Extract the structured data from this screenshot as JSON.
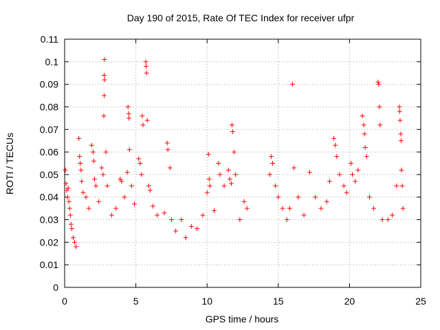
{
  "chart_data": {
    "type": "scatter",
    "title": "Day 190 of 2015, Rate Of TEC Index for receiver ufpr",
    "xlabel": "GPS time / hours",
    "ylabel": "ROTI / TECUs",
    "xlim": [
      0,
      25
    ],
    "ylim": [
      0,
      0.11
    ],
    "xticks": [
      "0",
      "5",
      "10",
      "15",
      "20",
      "25"
    ],
    "yticks": [
      "0",
      "0.01",
      "0.02",
      "0.03",
      "0.04",
      "0.05",
      "0.06",
      "0.07",
      "0.08",
      "0.09",
      "0.1",
      "0.11"
    ],
    "grid": true,
    "marker": "+",
    "color": "#ff0000",
    "series": [
      {
        "values": [
          [
            0.05,
            0.052
          ],
          [
            0.1,
            0.046
          ],
          [
            0.15,
            0.043
          ],
          [
            0.2,
            0.04
          ],
          [
            0.25,
            0.044
          ],
          [
            0.3,
            0.038
          ],
          [
            0.35,
            0.035
          ],
          [
            0.4,
            0.032
          ],
          [
            0.45,
            0.028
          ],
          [
            0.5,
            0.026
          ],
          [
            0.6,
            0.022
          ],
          [
            0.7,
            0.02
          ],
          [
            0.8,
            0.018
          ],
          [
            1.0,
            0.066
          ],
          [
            1.05,
            0.058
          ],
          [
            1.1,
            0.055
          ],
          [
            1.15,
            0.052
          ],
          [
            1.2,
            0.047
          ],
          [
            1.3,
            0.042
          ],
          [
            1.5,
            0.04
          ],
          [
            1.7,
            0.035
          ],
          [
            1.9,
            0.063
          ],
          [
            2.0,
            0.06
          ],
          [
            2.05,
            0.056
          ],
          [
            2.1,
            0.048
          ],
          [
            2.2,
            0.045
          ],
          [
            2.4,
            0.038
          ],
          [
            2.6,
            0.053
          ],
          [
            2.7,
            0.05
          ],
          [
            2.8,
            0.101
          ],
          [
            2.78,
            0.094
          ],
          [
            2.8,
            0.092
          ],
          [
            2.78,
            0.085
          ],
          [
            2.75,
            0.076
          ],
          [
            2.9,
            0.06
          ],
          [
            3.0,
            0.045
          ],
          [
            3.3,
            0.032
          ],
          [
            3.6,
            0.035
          ],
          [
            3.9,
            0.048
          ],
          [
            4.0,
            0.047
          ],
          [
            4.2,
            0.04
          ],
          [
            4.45,
            0.08
          ],
          [
            4.5,
            0.077
          ],
          [
            4.52,
            0.075
          ],
          [
            4.55,
            0.061
          ],
          [
            4.4,
            0.051
          ],
          [
            4.7,
            0.045
          ],
          [
            4.9,
            0.037
          ],
          [
            5.2,
            0.057
          ],
          [
            5.3,
            0.055
          ],
          [
            5.4,
            0.05
          ],
          [
            5.45,
            0.076
          ],
          [
            5.5,
            0.072
          ],
          [
            5.7,
            0.1
          ],
          [
            5.72,
            0.098
          ],
          [
            5.75,
            0.095
          ],
          [
            5.8,
            0.074
          ],
          [
            5.9,
            0.045
          ],
          [
            6.0,
            0.043
          ],
          [
            6.2,
            0.036
          ],
          [
            6.5,
            0.032
          ],
          [
            7.0,
            0.033
          ],
          [
            7.2,
            0.064
          ],
          [
            7.25,
            0.061
          ],
          [
            7.4,
            0.053
          ],
          [
            7.5,
            0.03
          ],
          [
            7.8,
            0.025
          ],
          [
            8.2,
            0.03
          ],
          [
            8.5,
            0.022
          ],
          [
            8.9,
            0.027
          ],
          [
            9.3,
            0.026
          ],
          [
            9.7,
            0.032
          ],
          [
            10.0,
            0.042
          ],
          [
            10.1,
            0.059
          ],
          [
            10.15,
            0.048
          ],
          [
            10.2,
            0.045
          ],
          [
            10.5,
            0.034
          ],
          [
            10.8,
            0.055
          ],
          [
            10.9,
            0.05
          ],
          [
            11.2,
            0.045
          ],
          [
            11.5,
            0.052
          ],
          [
            11.6,
            0.048
          ],
          [
            11.7,
            0.046
          ],
          [
            11.75,
            0.072
          ],
          [
            11.8,
            0.069
          ],
          [
            11.9,
            0.06
          ],
          [
            12.0,
            0.05
          ],
          [
            12.3,
            0.03
          ],
          [
            12.6,
            0.038
          ],
          [
            12.8,
            0.035
          ],
          [
            14.4,
            0.05
          ],
          [
            14.5,
            0.058
          ],
          [
            14.6,
            0.055
          ],
          [
            14.8,
            0.045
          ],
          [
            15.0,
            0.04
          ],
          [
            15.3,
            0.035
          ],
          [
            15.6,
            0.03
          ],
          [
            15.8,
            0.035
          ],
          [
            16.0,
            0.09
          ],
          [
            16.1,
            0.053
          ],
          [
            16.4,
            0.04
          ],
          [
            16.8,
            0.032
          ],
          [
            17.2,
            0.051
          ],
          [
            17.6,
            0.04
          ],
          [
            18.0,
            0.035
          ],
          [
            18.4,
            0.038
          ],
          [
            18.6,
            0.047
          ],
          [
            18.9,
            0.066
          ],
          [
            19.0,
            0.063
          ],
          [
            19.1,
            0.058
          ],
          [
            19.3,
            0.05
          ],
          [
            19.6,
            0.045
          ],
          [
            19.8,
            0.042
          ],
          [
            20.1,
            0.055
          ],
          [
            20.2,
            0.05
          ],
          [
            20.4,
            0.047
          ],
          [
            20.6,
            0.052
          ],
          [
            20.9,
            0.076
          ],
          [
            21.0,
            0.072
          ],
          [
            21.05,
            0.068
          ],
          [
            21.1,
            0.062
          ],
          [
            21.2,
            0.058
          ],
          [
            21.4,
            0.04
          ],
          [
            21.7,
            0.035
          ],
          [
            22.0,
            0.091
          ],
          [
            22.05,
            0.09
          ],
          [
            22.1,
            0.08
          ],
          [
            22.15,
            0.072
          ],
          [
            22.3,
            0.03
          ],
          [
            22.7,
            0.03
          ],
          [
            23.0,
            0.032
          ],
          [
            23.3,
            0.045
          ],
          [
            23.5,
            0.08
          ],
          [
            23.52,
            0.078
          ],
          [
            23.55,
            0.074
          ],
          [
            23.6,
            0.068
          ],
          [
            23.62,
            0.065
          ],
          [
            23.65,
            0.052
          ],
          [
            23.7,
            0.045
          ],
          [
            23.75,
            0.035
          ]
        ]
      }
    ]
  }
}
